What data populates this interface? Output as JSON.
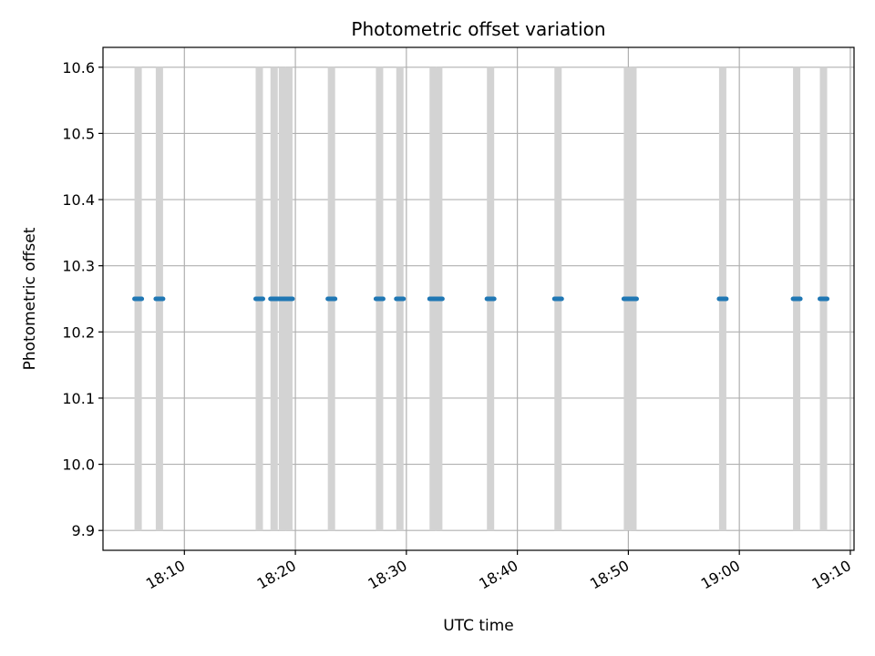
{
  "chart_data": {
    "type": "scatter",
    "title": "Photometric offset variation",
    "xlabel": "UTC time",
    "ylabel": "Photometric offset",
    "xlim": [
      "18:02:40",
      "19:10:20"
    ],
    "ylim": [
      9.87,
      10.63
    ],
    "grid": true,
    "x_ticks": [
      "18:10",
      "18:20",
      "18:30",
      "18:40",
      "18:50",
      "19:00",
      "19:10"
    ],
    "y_ticks": [
      9.9,
      10.0,
      10.1,
      10.2,
      10.3,
      10.4,
      10.5,
      10.6
    ],
    "range_bars": {
      "color": "#d3d3d3",
      "y_range": [
        9.9,
        10.6
      ],
      "times": [
        "18:05:50",
        "18:07:45",
        "18:16:45",
        "18:18:05",
        "18:18:50",
        "18:19:25",
        "18:23:15",
        "18:27:35",
        "18:29:25",
        "18:32:25",
        "18:32:55",
        "18:37:35",
        "18:43:40",
        "18:49:55",
        "18:50:25",
        "18:58:30",
        "19:05:10",
        "19:07:35"
      ]
    },
    "series": [
      {
        "color": "#1f77b4",
        "marker": "horizontal-segment",
        "points": [
          {
            "x": "18:05:50",
            "y": 10.25
          },
          {
            "x": "18:07:45",
            "y": 10.25
          },
          {
            "x": "18:16:45",
            "y": 10.25
          },
          {
            "x": "18:18:05",
            "y": 10.25
          },
          {
            "x": "18:18:50",
            "y": 10.25
          },
          {
            "x": "18:19:25",
            "y": 10.25
          },
          {
            "x": "18:23:15",
            "y": 10.25
          },
          {
            "x": "18:27:35",
            "y": 10.25
          },
          {
            "x": "18:29:25",
            "y": 10.25
          },
          {
            "x": "18:32:25",
            "y": 10.25
          },
          {
            "x": "18:32:55",
            "y": 10.25
          },
          {
            "x": "18:37:35",
            "y": 10.25
          },
          {
            "x": "18:43:40",
            "y": 10.25
          },
          {
            "x": "18:49:55",
            "y": 10.25
          },
          {
            "x": "18:50:25",
            "y": 10.25
          },
          {
            "x": "18:58:30",
            "y": 10.25
          },
          {
            "x": "19:05:10",
            "y": 10.25
          },
          {
            "x": "19:07:35",
            "y": 10.25
          }
        ]
      }
    ]
  }
}
